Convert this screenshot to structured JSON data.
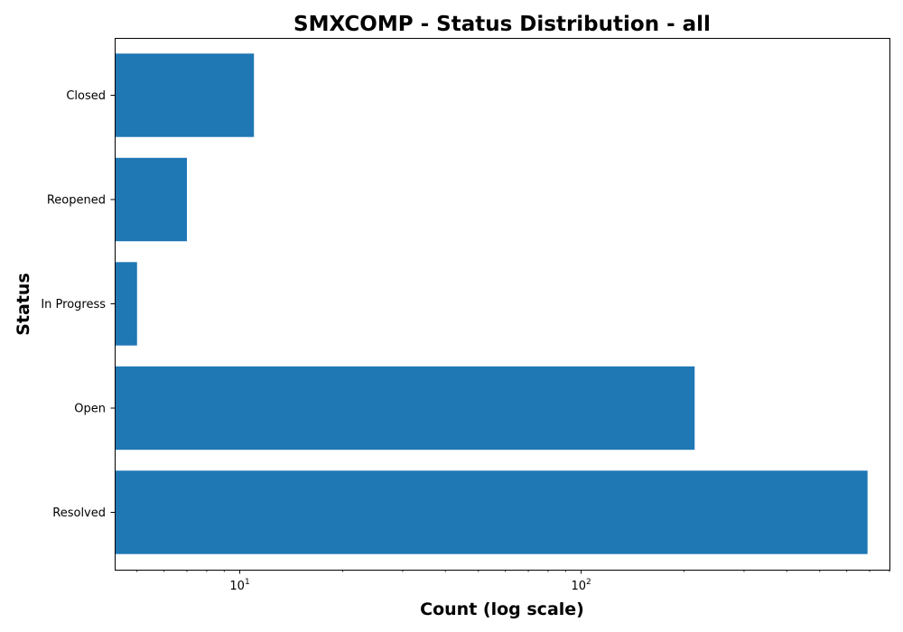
{
  "chart_data": {
    "type": "bar",
    "orientation": "horizontal",
    "title": "SMXCOMP - Status Distribution - all",
    "xlabel": "Count (log scale)",
    "ylabel": "Status",
    "xscale": "log",
    "xlim": [
      4.3,
      800
    ],
    "categories": [
      "Resolved",
      "Open",
      "In Progress",
      "Reopened",
      "Closed"
    ],
    "values": [
      690,
      215,
      5,
      7,
      11
    ],
    "major_ticks": [
      {
        "value": 10,
        "base": "10",
        "exponent": "1"
      },
      {
        "value": 100,
        "base": "10",
        "exponent": "2"
      }
    ],
    "bar_color": "#1f77b4",
    "grid": false,
    "legend": "none"
  }
}
